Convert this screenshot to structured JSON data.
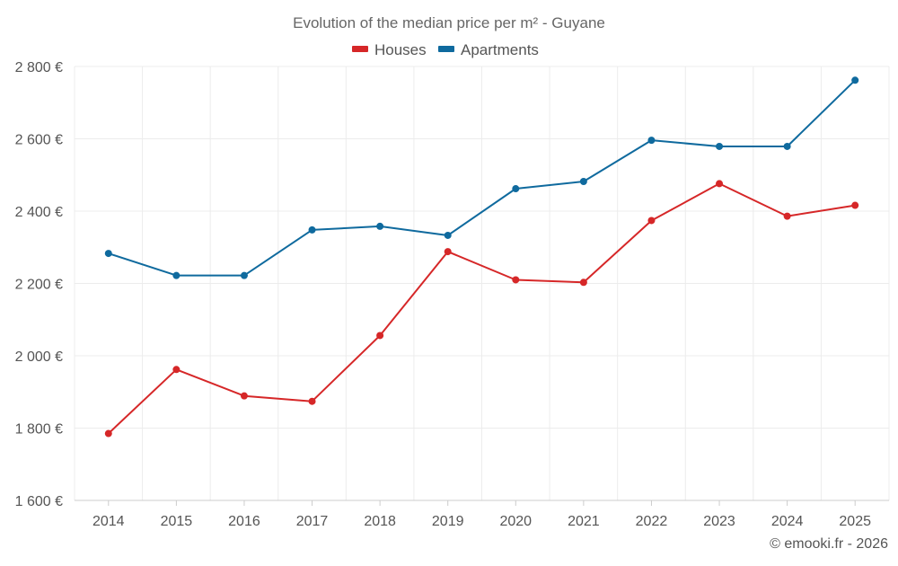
{
  "chart_data": {
    "type": "line",
    "title": "Evolution of the median price per m² - Guyane",
    "categories": [
      "2014",
      "2015",
      "2016",
      "2017",
      "2018",
      "2019",
      "2020",
      "2021",
      "2022",
      "2023",
      "2024",
      "2025"
    ],
    "series": [
      {
        "name": "Houses",
        "color": "#d62728",
        "values": [
          1785,
          1962,
          1889,
          1874,
          2056,
          2288,
          2210,
          2203,
          2374,
          2476,
          2386,
          2416
        ]
      },
      {
        "name": "Apartments",
        "color": "#0f6a9e",
        "values": [
          2283,
          2222,
          2222,
          2348,
          2358,
          2333,
          2462,
          2482,
          2596,
          2579,
          2579,
          2762
        ]
      }
    ],
    "y_ticks": [
      "1 600 €",
      "1 800 €",
      "2 000 €",
      "2 200 €",
      "2 400 €",
      "2 600 €",
      "2 800 €"
    ],
    "ylim": [
      1600,
      2800
    ],
    "xlabel": "",
    "ylabel": "",
    "grid": true,
    "legend_position": "top-center",
    "credit": "© emooki.fr - 2026"
  }
}
